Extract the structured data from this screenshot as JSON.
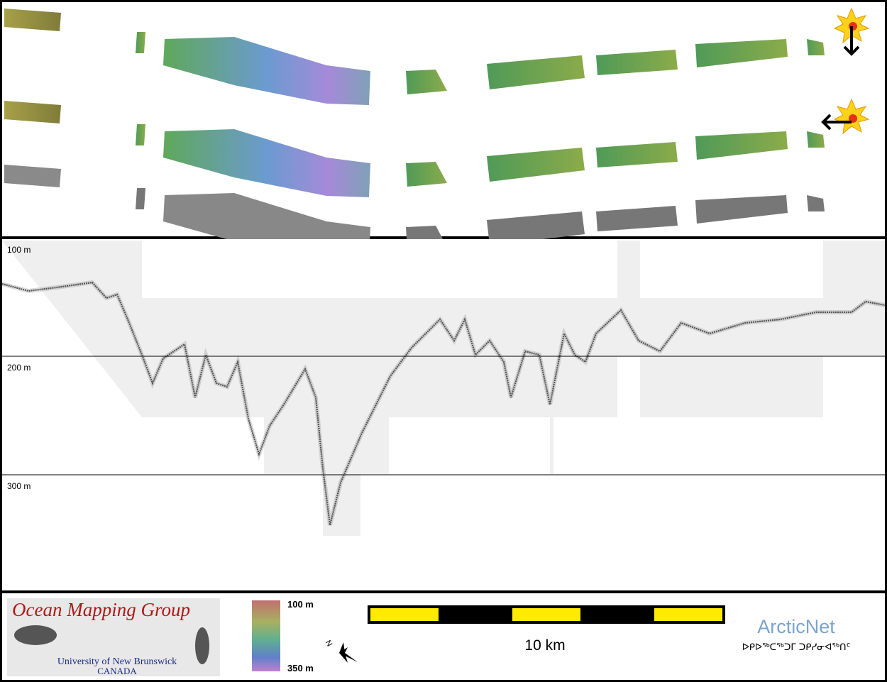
{
  "echogram": {
    "depth_labels": [
      "100 m",
      "200 m",
      "300 m"
    ]
  },
  "legend": {
    "colorbar_top": "100 m",
    "colorbar_bottom": "350 m",
    "scale_bar": "10 km"
  },
  "logos": {
    "omg_title": "Ocean Mapping Group",
    "omg_university": "University of New Brunswick",
    "omg_country": "CANADA",
    "arcticnet": "ArcticNet",
    "arcticnet_inuktitut": "ᐅᑭᐅᖅᑕᖅᑐᒥ ᑐᑭᓯᓂᐊᖅᑎᑦ"
  }
}
